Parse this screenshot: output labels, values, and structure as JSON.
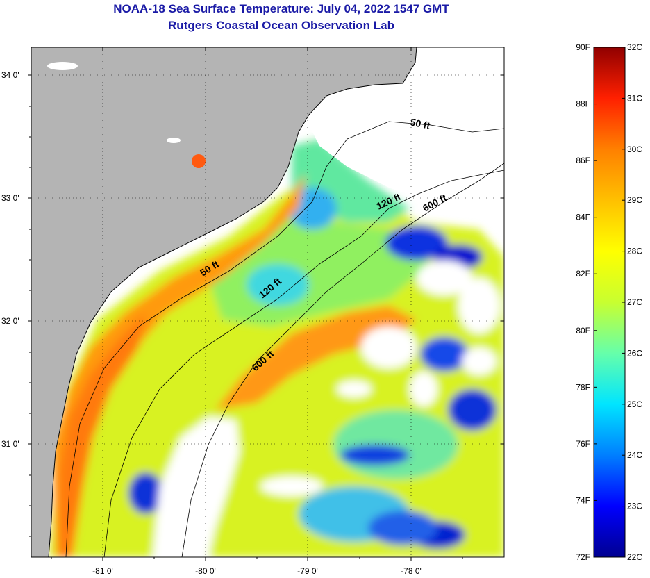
{
  "title": {
    "line1": "NOAA-18 Sea Surface Temperature:  July 04, 2022 1547 GMT",
    "line2": "Rutgers Coastal Ocean Observation Lab"
  },
  "map": {
    "lon_labels": [
      "-81 0'",
      "-80 0'",
      "-79 0'",
      "-78 0'"
    ],
    "lat_labels": [
      "34 0'",
      "33 0'",
      "32 0'",
      "31 0'"
    ],
    "contours": [
      {
        "label": "50 ft"
      },
      {
        "label": "120 ft"
      },
      {
        "label": "600 ft"
      },
      {
        "label": "50 ft"
      },
      {
        "label": "120 ft"
      },
      {
        "label": "600 ft"
      }
    ]
  },
  "colorbar": {
    "fahrenheit_labels": [
      "90F",
      "88F",
      "86F",
      "84F",
      "82F",
      "80F",
      "78F",
      "76F",
      "74F",
      "72F"
    ],
    "celsius_labels": [
      "32C",
      "31C",
      "30C",
      "29C",
      "28C",
      "27C",
      "26C",
      "25C",
      "24C",
      "23C",
      "22C"
    ],
    "colors": [
      "#000090",
      "#0000ff",
      "#007fff",
      "#00e5ff",
      "#66ffaa",
      "#c8ff30",
      "#ffff00",
      "#ffc000",
      "#ff8000",
      "#ff2000",
      "#900000"
    ]
  }
}
